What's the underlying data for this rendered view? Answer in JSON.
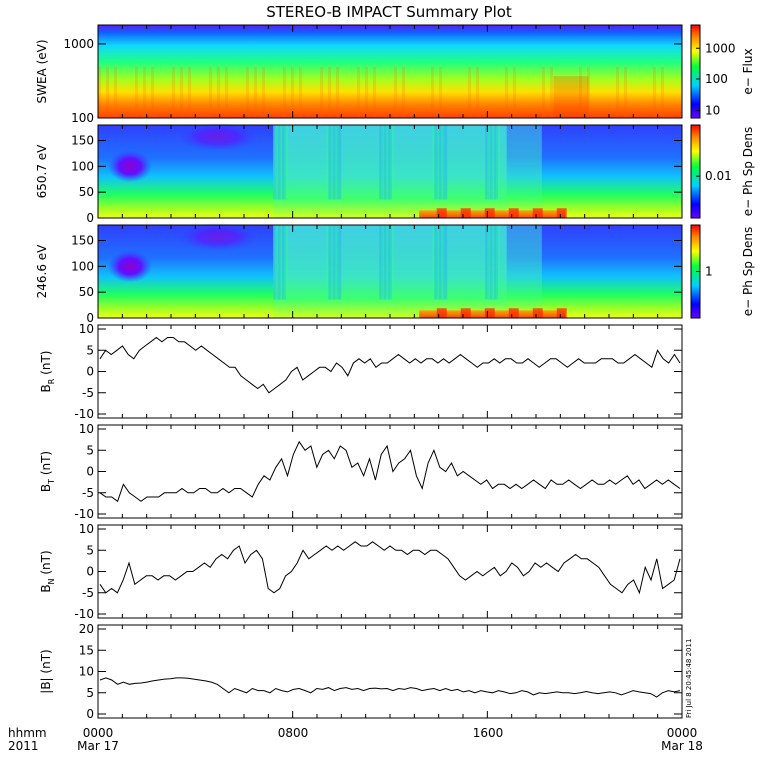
{
  "title": "STEREO-B IMPACT Summary Plot",
  "footer": {
    "row1_label": "hhmm",
    "row2_label": "2011",
    "x_ticks": [
      "0000",
      "0800",
      "1600",
      "0000"
    ],
    "x_dates": [
      "Mar 17",
      "Mar 18"
    ],
    "timestamp": "Fri Jul  8 20:45:48 2011"
  },
  "chart_data": [
    {
      "type": "heatmap",
      "panel": "swea",
      "ylabel": "SWEA (eV)",
      "yscale": "log",
      "ylim": [
        100,
        1800
      ],
      "yticks": [
        "1000",
        "100"
      ],
      "colorbar_label": "e− Flux",
      "colorbar_ticks": [
        "1000",
        "100",
        "10"
      ]
    },
    {
      "type": "heatmap",
      "panel": "pad650",
      "ylabel": "650.7 eV",
      "ylim": [
        0,
        180
      ],
      "yticks": [
        "150",
        "100",
        "50",
        "0"
      ],
      "colorbar_label": "e− Ph Sp Dens",
      "colorbar_ticks": [
        "0.01"
      ]
    },
    {
      "type": "heatmap",
      "panel": "pad246",
      "ylabel": "246.6 eV",
      "ylim": [
        0,
        180
      ],
      "yticks": [
        "150",
        "100",
        "50",
        "0"
      ],
      "colorbar_label": "e− Ph Sp Dens",
      "colorbar_ticks": [
        "1"
      ]
    },
    {
      "type": "line",
      "panel": "br",
      "ylabel": "B",
      "ylabel_sub": "R",
      "ylabel_unit": "(nT)",
      "ylim": [
        -10,
        10
      ],
      "yticks": [
        "10",
        "5",
        "0",
        "-5",
        "-10"
      ],
      "series": [
        {
          "values": [
            3,
            5,
            4,
            5,
            6,
            4,
            3,
            5,
            6,
            7,
            8,
            7,
            8,
            8,
            7,
            7,
            6,
            5,
            6,
            5,
            4,
            3,
            2,
            1,
            1,
            -1,
            -2,
            -3,
            -4,
            -3,
            -5,
            -4,
            -3,
            -2,
            0,
            1,
            -2,
            -1,
            0,
            1,
            1,
            0,
            2,
            1,
            -1,
            2,
            3,
            2,
            3,
            1,
            2,
            2,
            3,
            4,
            3,
            2,
            3,
            2,
            3,
            3,
            2,
            3,
            2,
            3,
            4,
            3,
            2,
            1,
            2,
            2,
            3,
            2,
            3,
            3,
            2,
            2,
            3,
            2,
            1,
            2,
            3,
            3,
            2,
            1,
            2,
            3,
            2,
            2,
            2,
            3,
            3,
            3,
            2,
            2,
            3,
            4,
            3,
            2,
            1,
            5,
            3,
            2,
            4,
            2
          ]
        }
      ]
    },
    {
      "type": "line",
      "panel": "bt",
      "ylabel": "B",
      "ylabel_sub": "T",
      "ylabel_unit": "(nT)",
      "ylim": [
        -10,
        10
      ],
      "yticks": [
        "10",
        "5",
        "0",
        "-5",
        "-10"
      ],
      "series": [
        {
          "values": [
            -5,
            -6,
            -6,
            -7,
            -3,
            -5,
            -6,
            -7,
            -6,
            -6,
            -6,
            -5,
            -5,
            -5,
            -4,
            -5,
            -5,
            -4,
            -4,
            -5,
            -5,
            -4,
            -5,
            -4,
            -4,
            -5,
            -6,
            -3,
            -1,
            -2,
            1,
            3,
            -1,
            4,
            7,
            5,
            6,
            1,
            4,
            5,
            3,
            6,
            5,
            1,
            2,
            -1,
            3,
            -2,
            4,
            6,
            0,
            2,
            3,
            5,
            -1,
            -4,
            2,
            5,
            1,
            0,
            2,
            -1,
            0,
            -1,
            -2,
            -3,
            -2,
            -4,
            -3,
            -3,
            -4,
            -3,
            -4,
            -3,
            -2,
            -3,
            -4,
            -2,
            -3,
            -3,
            -2,
            -3,
            -4,
            -3,
            -2,
            -3,
            -3,
            -2,
            -3,
            -2,
            -1,
            -3,
            -2,
            -4,
            -3,
            -2,
            -3,
            -2,
            -3,
            -4
          ]
        }
      ]
    },
    {
      "type": "line",
      "panel": "bn",
      "ylabel": "B",
      "ylabel_sub": "N",
      "ylabel_unit": "(nT)",
      "ylim": [
        -10,
        10
      ],
      "yticks": [
        "10",
        "5",
        "0",
        "-5",
        "-10"
      ],
      "series": [
        {
          "values": [
            -3,
            -5,
            -4,
            -5,
            -2,
            2,
            -3,
            -2,
            -1,
            -1,
            -2,
            -1,
            -1,
            -2,
            -1,
            0,
            0,
            1,
            2,
            1,
            3,
            4,
            3,
            5,
            6,
            2,
            4,
            5,
            3,
            -4,
            -5,
            -4,
            -1,
            0,
            2,
            5,
            3,
            4,
            5,
            6,
            5,
            6,
            5,
            6,
            7,
            6,
            6,
            7,
            6,
            5,
            6,
            5,
            5,
            4,
            5,
            5,
            4,
            5,
            5,
            4,
            3,
            1,
            -1,
            -2,
            -1,
            0,
            -1,
            0,
            1,
            -1,
            0,
            2,
            1,
            -1,
            0,
            2,
            1,
            2,
            1,
            0,
            2,
            3,
            4,
            3,
            3,
            2,
            1,
            -1,
            -3,
            -4,
            -5,
            -3,
            -2,
            -5,
            1,
            -2,
            3,
            -4,
            -3,
            -2,
            3
          ]
        }
      ]
    },
    {
      "type": "line",
      "panel": "bmag",
      "ylabel": "|B| (nT)",
      "ylim": [
        0,
        20
      ],
      "yticks": [
        "20",
        "15",
        "10",
        "5",
        "0"
      ],
      "series": [
        {
          "values": [
            8,
            8.5,
            8,
            7,
            7.5,
            7,
            7.2,
            7.3,
            7.5,
            7.8,
            8,
            8.2,
            8.3,
            8.5,
            8.5,
            8.4,
            8.2,
            8,
            7.8,
            7.5,
            7,
            6,
            5,
            6,
            5.5,
            5,
            6,
            5.5,
            5.5,
            5,
            6,
            5.5,
            5.2,
            5.8,
            6,
            5.5,
            5,
            6,
            5.8,
            6.2,
            5.5,
            6,
            6.2,
            5.8,
            6,
            5.5,
            6,
            6.1,
            5.9,
            6,
            5.5,
            6,
            5.8,
            6.2,
            6,
            5.5,
            5.8,
            6,
            5.5,
            6,
            5.5,
            5.8,
            5.2,
            5.5,
            5,
            5.5,
            5.2,
            5,
            5.5,
            5.2,
            4.8,
            5,
            5.5,
            5.2,
            4.5,
            5,
            4.8,
            5,
            5.2,
            5,
            5,
            4.8,
            5,
            5.3,
            5,
            4.8,
            5,
            5.2,
            5,
            4.5,
            5,
            5.5,
            5.2,
            5,
            4.8,
            4,
            5,
            5.5,
            5.2,
            5.5
          ]
        }
      ]
    }
  ]
}
